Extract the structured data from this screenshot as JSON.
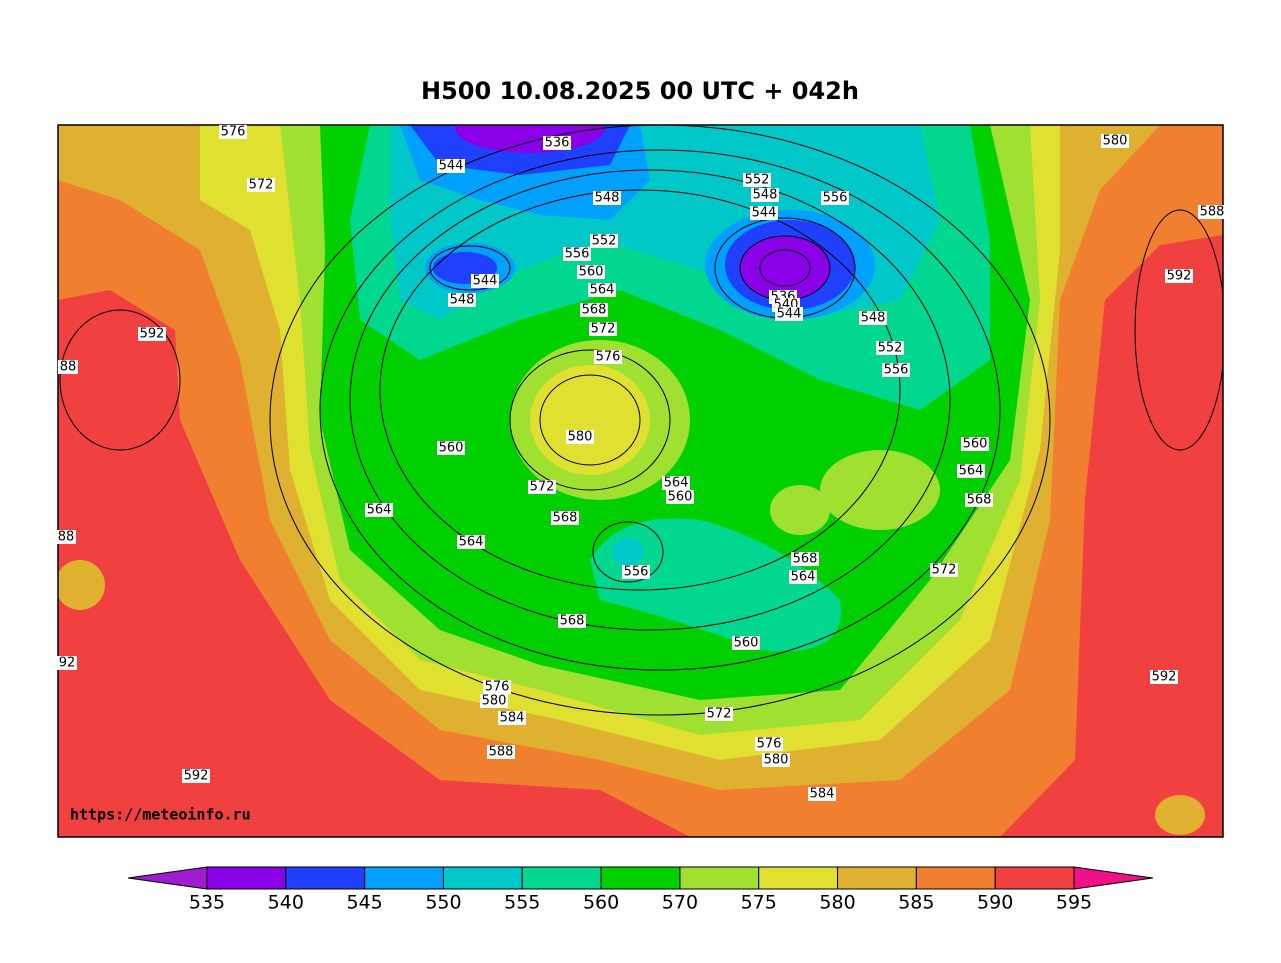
{
  "title": "H500  10.08.2025 00 UTC + 042h",
  "watermark": "https://meteoinfo.ru",
  "contour_labels": [
    "576",
    "572",
    "544",
    "536",
    "548",
    "552",
    "556",
    "560",
    "564",
    "568",
    "572",
    "576",
    "580",
    "572",
    "568",
    "564",
    "560",
    "544",
    "548",
    "560",
    "564",
    "564",
    "556",
    "568",
    "560",
    "568",
    "564",
    "572",
    "576",
    "580",
    "584",
    "588",
    "572",
    "576",
    "580",
    "584",
    "592",
    "92",
    "88",
    "88",
    "592",
    "552",
    "548",
    "544",
    "556",
    "536",
    "540",
    "544",
    "548",
    "552",
    "556",
    "560",
    "564",
    "568",
    "580",
    "588",
    "592",
    "592"
  ],
  "colorbar": {
    "levels": [
      535,
      540,
      545,
      550,
      555,
      560,
      570,
      575,
      580,
      585,
      590,
      595
    ],
    "under_color": "#a01cd0",
    "over_color": "#f0108a",
    "colors": [
      "#8a00e8",
      "#2040ff",
      "#00a0ff",
      "#00c8c8",
      "#00d890",
      "#00d000",
      "#a0e030",
      "#e0e030",
      "#e0b030",
      "#f08030",
      "#f04040"
    ]
  }
}
